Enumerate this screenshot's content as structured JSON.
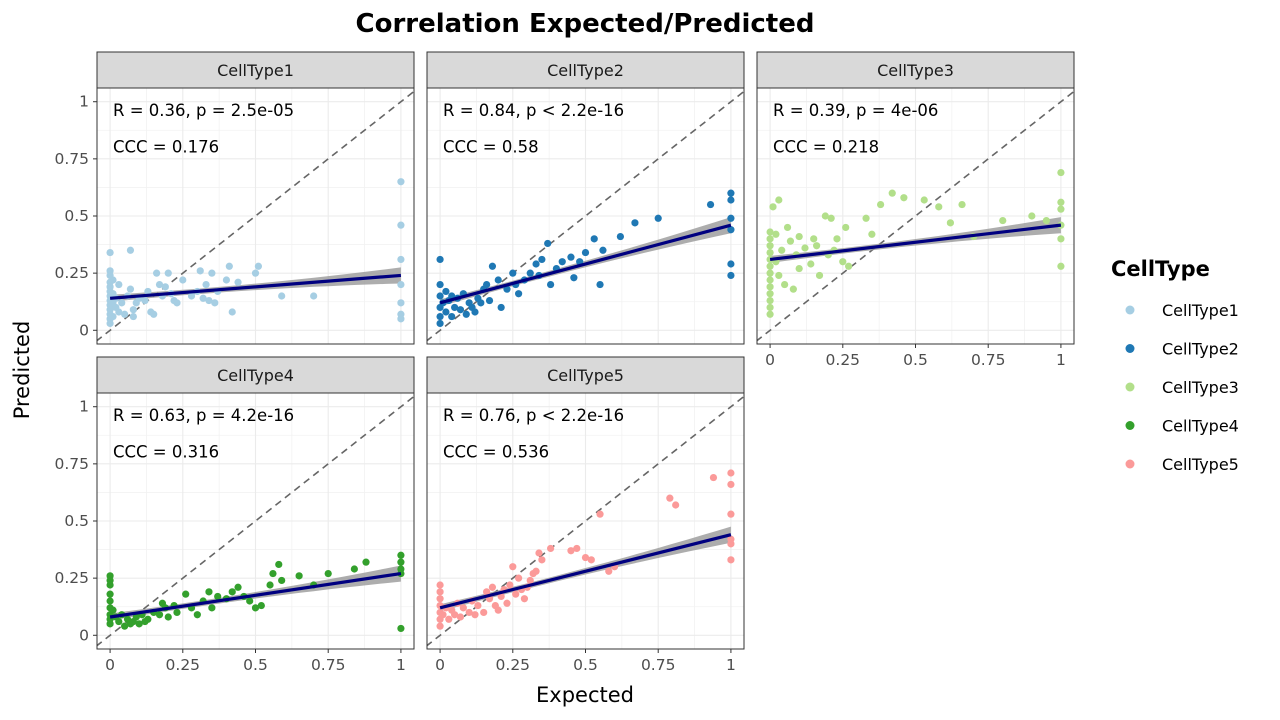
{
  "chart_data": {
    "type": "scatter",
    "title": "Correlation Expected/Predicted",
    "xlabel": "Expected",
    "ylabel": "Predicted",
    "xlim": [
      0,
      1
    ],
    "ylim": [
      0,
      1
    ],
    "x_ticks": [
      "0",
      "0.25",
      "0.5",
      "0.75",
      "1"
    ],
    "y_ticks": [
      "0",
      "0.25",
      "0.5",
      "0.75",
      "1"
    ],
    "grid": true,
    "identity_line": true,
    "legend": {
      "title": "CellType",
      "placement": "right",
      "entries": [
        {
          "label": "CellType1",
          "color": "#a6cee3"
        },
        {
          "label": "CellType2",
          "color": "#1f78b4"
        },
        {
          "label": "CellType3",
          "color": "#b2df8a"
        },
        {
          "label": "CellType4",
          "color": "#33a02c"
        },
        {
          "label": "CellType5",
          "color": "#fb9a99"
        }
      ]
    },
    "fit_color": "#000080",
    "band_color": "#999999",
    "panels": [
      {
        "name": "CellType1",
        "color": "#a6cee3",
        "stats": [
          "R = 0.36, p = 2.5e-05",
          "CCC = 0.176"
        ],
        "fit": {
          "intercept": 0.14,
          "slope": 0.1
        },
        "points": [
          [
            0,
            0.34
          ],
          [
            0,
            0.26
          ],
          [
            0,
            0.24
          ],
          [
            0,
            0.21
          ],
          [
            0,
            0.19
          ],
          [
            0,
            0.17
          ],
          [
            0,
            0.15
          ],
          [
            0,
            0.13
          ],
          [
            0,
            0.11
          ],
          [
            0,
            0.09
          ],
          [
            0,
            0.07
          ],
          [
            0,
            0.05
          ],
          [
            0,
            0.03
          ],
          [
            0.01,
            0.22
          ],
          [
            0.01,
            0.16
          ],
          [
            0.01,
            0.12
          ],
          [
            0.01,
            0.06
          ],
          [
            0.02,
            0.14
          ],
          [
            0.02,
            0.1
          ],
          [
            0.03,
            0.2
          ],
          [
            0.03,
            0.08
          ],
          [
            0.04,
            0.12
          ],
          [
            0.05,
            0.07
          ],
          [
            0.06,
            0.15
          ],
          [
            0.07,
            0.35
          ],
          [
            0.07,
            0.18
          ],
          [
            0.08,
            0.09
          ],
          [
            0.08,
            0.06
          ],
          [
            0.09,
            0.12
          ],
          [
            0.1,
            0.14
          ],
          [
            0.12,
            0.13
          ],
          [
            0.13,
            0.17
          ],
          [
            0.14,
            0.08
          ],
          [
            0.15,
            0.07
          ],
          [
            0.16,
            0.25
          ],
          [
            0.17,
            0.2
          ],
          [
            0.18,
            0.15
          ],
          [
            0.19,
            0.19
          ],
          [
            0.2,
            0.25
          ],
          [
            0.21,
            0.16
          ],
          [
            0.22,
            0.13
          ],
          [
            0.23,
            0.12
          ],
          [
            0.25,
            0.22
          ],
          [
            0.28,
            0.15
          ],
          [
            0.3,
            0.17
          ],
          [
            0.31,
            0.26
          ],
          [
            0.32,
            0.14
          ],
          [
            0.33,
            0.2
          ],
          [
            0.34,
            0.13
          ],
          [
            0.35,
            0.25
          ],
          [
            0.36,
            0.12
          ],
          [
            0.37,
            0.17
          ],
          [
            0.4,
            0.22
          ],
          [
            0.41,
            0.28
          ],
          [
            0.42,
            0.08
          ],
          [
            0.44,
            0.21
          ],
          [
            0.5,
            0.25
          ],
          [
            0.51,
            0.28
          ],
          [
            0.59,
            0.15
          ],
          [
            0.7,
            0.15
          ],
          [
            1,
            0.65
          ],
          [
            1,
            0.46
          ],
          [
            1,
            0.31
          ],
          [
            1,
            0.2
          ],
          [
            1,
            0.12
          ],
          [
            1,
            0.07
          ],
          [
            1,
            0.05
          ]
        ]
      },
      {
        "name": "CellType2",
        "color": "#1f78b4",
        "stats": [
          "R = 0.84, p < 2.2e-16",
          "CCC = 0.58"
        ],
        "fit": {
          "intercept": 0.12,
          "slope": 0.34
        },
        "points": [
          [
            0,
            0.31
          ],
          [
            0,
            0.2
          ],
          [
            0,
            0.15
          ],
          [
            0,
            0.1
          ],
          [
            0,
            0.06
          ],
          [
            0,
            0.03
          ],
          [
            0.01,
            0.12
          ],
          [
            0.02,
            0.17
          ],
          [
            0.02,
            0.08
          ],
          [
            0.03,
            0.13
          ],
          [
            0.04,
            0.06
          ],
          [
            0.04,
            0.15
          ],
          [
            0.05,
            0.1
          ],
          [
            0.06,
            0.14
          ],
          [
            0.07,
            0.09
          ],
          [
            0.08,
            0.16
          ],
          [
            0.09,
            0.07
          ],
          [
            0.1,
            0.12
          ],
          [
            0.11,
            0.1
          ],
          [
            0.12,
            0.08
          ],
          [
            0.13,
            0.14
          ],
          [
            0.14,
            0.12
          ],
          [
            0.15,
            0.18
          ],
          [
            0.16,
            0.2
          ],
          [
            0.17,
            0.13
          ],
          [
            0.18,
            0.28
          ],
          [
            0.2,
            0.22
          ],
          [
            0.21,
            0.1
          ],
          [
            0.23,
            0.18
          ],
          [
            0.25,
            0.25
          ],
          [
            0.26,
            0.2
          ],
          [
            0.27,
            0.16
          ],
          [
            0.29,
            0.22
          ],
          [
            0.31,
            0.25
          ],
          [
            0.33,
            0.29
          ],
          [
            0.34,
            0.24
          ],
          [
            0.35,
            0.31
          ],
          [
            0.37,
            0.38
          ],
          [
            0.38,
            0.2
          ],
          [
            0.4,
            0.27
          ],
          [
            0.42,
            0.3
          ],
          [
            0.45,
            0.32
          ],
          [
            0.46,
            0.23
          ],
          [
            0.48,
            0.3
          ],
          [
            0.5,
            0.34
          ],
          [
            0.53,
            0.4
          ],
          [
            0.55,
            0.2
          ],
          [
            0.56,
            0.35
          ],
          [
            0.62,
            0.41
          ],
          [
            0.67,
            0.47
          ],
          [
            0.75,
            0.49
          ],
          [
            0.93,
            0.55
          ],
          [
            1,
            0.6
          ],
          [
            1,
            0.57
          ],
          [
            1,
            0.49
          ],
          [
            1,
            0.44
          ],
          [
            1,
            0.29
          ],
          [
            1,
            0.24
          ]
        ]
      },
      {
        "name": "CellType3",
        "color": "#b2df8a",
        "stats": [
          "R = 0.39, p = 4e-06",
          "CCC = 0.218"
        ],
        "fit": {
          "intercept": 0.31,
          "slope": 0.15
        },
        "points": [
          [
            0,
            0.43
          ],
          [
            0,
            0.4
          ],
          [
            0,
            0.37
          ],
          [
            0,
            0.34
          ],
          [
            0,
            0.31
          ],
          [
            0,
            0.28
          ],
          [
            0,
            0.25
          ],
          [
            0,
            0.22
          ],
          [
            0,
            0.19
          ],
          [
            0,
            0.16
          ],
          [
            0,
            0.13
          ],
          [
            0,
            0.1
          ],
          [
            0,
            0.07
          ],
          [
            0.01,
            0.54
          ],
          [
            0.02,
            0.42
          ],
          [
            0.02,
            0.3
          ],
          [
            0.03,
            0.57
          ],
          [
            0.03,
            0.24
          ],
          [
            0.04,
            0.35
          ],
          [
            0.05,
            0.2
          ],
          [
            0.06,
            0.45
          ],
          [
            0.07,
            0.39
          ],
          [
            0.08,
            0.18
          ],
          [
            0.09,
            0.33
          ],
          [
            0.1,
            0.41
          ],
          [
            0.1,
            0.27
          ],
          [
            0.12,
            0.36
          ],
          [
            0.14,
            0.29
          ],
          [
            0.15,
            0.4
          ],
          [
            0.16,
            0.37
          ],
          [
            0.17,
            0.24
          ],
          [
            0.19,
            0.5
          ],
          [
            0.2,
            0.33
          ],
          [
            0.21,
            0.49
          ],
          [
            0.22,
            0.35
          ],
          [
            0.23,
            0.4
          ],
          [
            0.25,
            0.3
          ],
          [
            0.26,
            0.45
          ],
          [
            0.27,
            0.28
          ],
          [
            0.33,
            0.49
          ],
          [
            0.35,
            0.42
          ],
          [
            0.38,
            0.55
          ],
          [
            0.42,
            0.6
          ],
          [
            0.46,
            0.58
          ],
          [
            0.53,
            0.57
          ],
          [
            0.58,
            0.54
          ],
          [
            0.62,
            0.47
          ],
          [
            0.66,
            0.55
          ],
          [
            0.7,
            0.41
          ],
          [
            0.8,
            0.48
          ],
          [
            0.9,
            0.5
          ],
          [
            0.95,
            0.48
          ],
          [
            1,
            0.69
          ],
          [
            1,
            0.56
          ],
          [
            1,
            0.53
          ],
          [
            1,
            0.46
          ],
          [
            1,
            0.4
          ],
          [
            1,
            0.28
          ]
        ]
      },
      {
        "name": "CellType4",
        "color": "#33a02c",
        "stats": [
          "R = 0.63, p = 4.2e-16",
          "CCC = 0.316"
        ],
        "fit": {
          "intercept": 0.08,
          "slope": 0.19
        },
        "points": [
          [
            0,
            0.26
          ],
          [
            0,
            0.24
          ],
          [
            0,
            0.22
          ],
          [
            0,
            0.18
          ],
          [
            0,
            0.15
          ],
          [
            0,
            0.12
          ],
          [
            0,
            0.09
          ],
          [
            0,
            0.07
          ],
          [
            0,
            0.05
          ],
          [
            0.01,
            0.11
          ],
          [
            0.02,
            0.08
          ],
          [
            0.03,
            0.06
          ],
          [
            0.04,
            0.09
          ],
          [
            0.05,
            0.04
          ],
          [
            0.06,
            0.07
          ],
          [
            0.07,
            0.05
          ],
          [
            0.08,
            0.06
          ],
          [
            0.09,
            0.08
          ],
          [
            0.1,
            0.05
          ],
          [
            0.11,
            0.09
          ],
          [
            0.12,
            0.06
          ],
          [
            0.13,
            0.07
          ],
          [
            0.15,
            0.1
          ],
          [
            0.17,
            0.09
          ],
          [
            0.18,
            0.14
          ],
          [
            0.19,
            0.12
          ],
          [
            0.2,
            0.08
          ],
          [
            0.22,
            0.13
          ],
          [
            0.23,
            0.1
          ],
          [
            0.26,
            0.18
          ],
          [
            0.28,
            0.12
          ],
          [
            0.3,
            0.09
          ],
          [
            0.32,
            0.15
          ],
          [
            0.34,
            0.19
          ],
          [
            0.35,
            0.12
          ],
          [
            0.37,
            0.17
          ],
          [
            0.4,
            0.16
          ],
          [
            0.42,
            0.19
          ],
          [
            0.44,
            0.21
          ],
          [
            0.46,
            0.17
          ],
          [
            0.48,
            0.15
          ],
          [
            0.5,
            0.12
          ],
          [
            0.52,
            0.13
          ],
          [
            0.55,
            0.22
          ],
          [
            0.56,
            0.27
          ],
          [
            0.58,
            0.31
          ],
          [
            0.59,
            0.24
          ],
          [
            0.65,
            0.26
          ],
          [
            0.7,
            0.22
          ],
          [
            0.75,
            0.27
          ],
          [
            0.84,
            0.29
          ],
          [
            0.88,
            0.32
          ],
          [
            1,
            0.35
          ],
          [
            1,
            0.32
          ],
          [
            1,
            0.29
          ],
          [
            1,
            0.27
          ],
          [
            1,
            0.03
          ]
        ]
      },
      {
        "name": "CellType5",
        "color": "#fb9a99",
        "stats": [
          "R = 0.76, p < 2.2e-16",
          "CCC = 0.536"
        ],
        "fit": {
          "intercept": 0.12,
          "slope": 0.32
        },
        "points": [
          [
            0,
            0.22
          ],
          [
            0,
            0.19
          ],
          [
            0,
            0.16
          ],
          [
            0,
            0.13
          ],
          [
            0,
            0.1
          ],
          [
            0,
            0.07
          ],
          [
            0,
            0.04
          ],
          [
            0.01,
            0.09
          ],
          [
            0.02,
            0.12
          ],
          [
            0.03,
            0.07
          ],
          [
            0.04,
            0.11
          ],
          [
            0.05,
            0.09
          ],
          [
            0.06,
            0.14
          ],
          [
            0.07,
            0.08
          ],
          [
            0.08,
            0.12
          ],
          [
            0.1,
            0.1
          ],
          [
            0.11,
            0.15
          ],
          [
            0.12,
            0.09
          ],
          [
            0.13,
            0.13
          ],
          [
            0.15,
            0.1
          ],
          [
            0.16,
            0.19
          ],
          [
            0.17,
            0.16
          ],
          [
            0.18,
            0.21
          ],
          [
            0.19,
            0.13
          ],
          [
            0.2,
            0.11
          ],
          [
            0.21,
            0.17
          ],
          [
            0.22,
            0.2
          ],
          [
            0.23,
            0.14
          ],
          [
            0.24,
            0.22
          ],
          [
            0.25,
            0.3
          ],
          [
            0.26,
            0.18
          ],
          [
            0.27,
            0.25
          ],
          [
            0.28,
            0.2
          ],
          [
            0.29,
            0.16
          ],
          [
            0.3,
            0.21
          ],
          [
            0.31,
            0.24
          ],
          [
            0.32,
            0.27
          ],
          [
            0.33,
            0.28
          ],
          [
            0.34,
            0.36
          ],
          [
            0.35,
            0.33
          ],
          [
            0.38,
            0.38
          ],
          [
            0.45,
            0.37
          ],
          [
            0.47,
            0.38
          ],
          [
            0.5,
            0.34
          ],
          [
            0.52,
            0.33
          ],
          [
            0.55,
            0.53
          ],
          [
            0.58,
            0.28
          ],
          [
            0.6,
            0.3
          ],
          [
            0.79,
            0.6
          ],
          [
            0.81,
            0.57
          ],
          [
            0.94,
            0.69
          ],
          [
            1,
            0.71
          ],
          [
            1,
            0.66
          ],
          [
            1,
            0.53
          ],
          [
            1,
            0.42
          ],
          [
            1,
            0.4
          ],
          [
            1,
            0.33
          ]
        ]
      }
    ]
  }
}
